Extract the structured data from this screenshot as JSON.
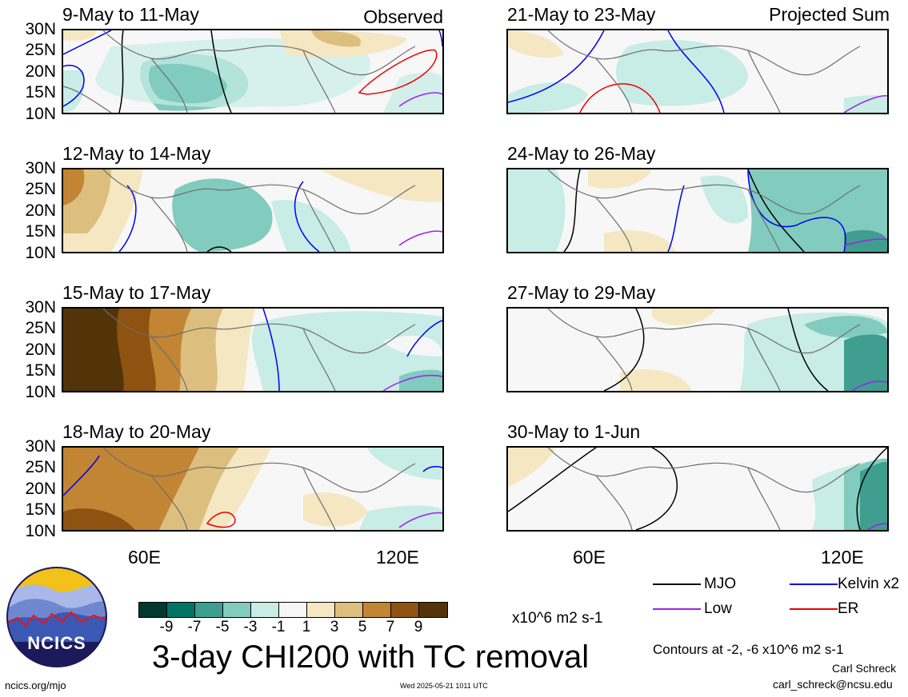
{
  "header": {
    "observed_label": "Observed",
    "projected_label": "Projected Sum"
  },
  "panels": [
    {
      "title": "9-May to 11-May",
      "column": "observed"
    },
    {
      "title": "12-May to 14-May",
      "column": "observed"
    },
    {
      "title": "15-May to 17-May",
      "column": "observed"
    },
    {
      "title": "18-May to 20-May",
      "column": "observed"
    },
    {
      "title": "21-May to 23-May",
      "column": "projected"
    },
    {
      "title": "24-May to 26-May",
      "column": "projected"
    },
    {
      "title": "27-May to 29-May",
      "column": "projected"
    },
    {
      "title": "30-May to 1-Jun",
      "column": "projected"
    }
  ],
  "lat_labels": [
    "30N",
    "25N",
    "20N",
    "15N",
    "10N"
  ],
  "lon_labels": [
    "60E",
    "120E"
  ],
  "colorbar": {
    "colors": [
      "#01382f",
      "#017466",
      "#3f9e8f",
      "#82cbbf",
      "#c8ece6",
      "#f6f6f6",
      "#f4e7c2",
      "#dcbf7e",
      "#c28533",
      "#8e5211",
      "#533409"
    ],
    "ticks": [
      "-9",
      "-7",
      "-5",
      "-3",
      "-1",
      "1",
      "3",
      "5",
      "7",
      "9"
    ],
    "units": "x10^6 m2 s-1"
  },
  "legend": {
    "items": [
      {
        "label": "MJO",
        "color": "#000000"
      },
      {
        "label": "Kelvin x2",
        "color": "#0000ee"
      },
      {
        "label": "Low",
        "color": "#a020f0"
      },
      {
        "label": "ER",
        "color": "#ee0000"
      }
    ],
    "contours_note": "Contours at -2, -6 x10^6 m2 s-1"
  },
  "main_title": "3-day CHI200 with TC removal",
  "logo_text": "NCICS",
  "footer": {
    "url": "ncics.org/mjo",
    "timestamp": "Wed 2025-05-21 1011 UTC",
    "author": "Carl Schreck",
    "email": "carl_schreck@ncsu.edu"
  }
}
